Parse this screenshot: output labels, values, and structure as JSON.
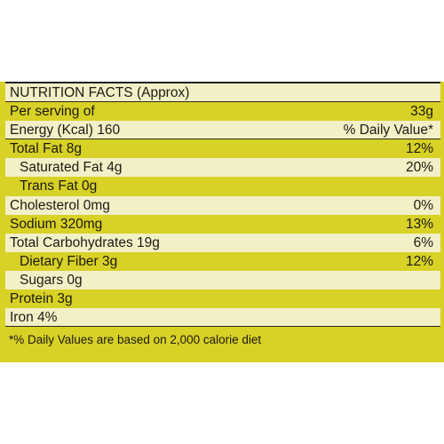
{
  "header": "NUTRITION FACTS (Approx)",
  "rows": [
    {
      "label": "Per serving of",
      "value": "33g",
      "indent": false
    },
    {
      "label": "Energy (Kcal) 160",
      "value": "% Daily Value*",
      "indent": false
    },
    {
      "label": "Total Fat 8g",
      "value": "12%",
      "indent": false
    },
    {
      "label": "Saturated Fat 4g",
      "value": "20%",
      "indent": true
    },
    {
      "label": "Trans Fat 0g",
      "value": "",
      "indent": true
    },
    {
      "label": "Cholesterol 0mg",
      "value": "0%",
      "indent": false
    },
    {
      "label": "Sodium 320mg",
      "value": "13%",
      "indent": false
    },
    {
      "label": "Total Carbohydrates 19g",
      "value": "6%",
      "indent": false
    },
    {
      "label": "Dietary Fiber 3g",
      "value": "12%",
      "indent": true
    },
    {
      "label": "Sugars 0g",
      "value": "",
      "indent": true
    },
    {
      "label": "Protein 3g",
      "value": "",
      "indent": false
    },
    {
      "label": "Iron 4%",
      "value": "",
      "indent": false
    }
  ],
  "footnote": "*% Daily Values are based on 2,000 calorie diet",
  "colors": {
    "yellow": "#d8d126",
    "light": "#f3f0c8",
    "text": "#1a1a12"
  }
}
